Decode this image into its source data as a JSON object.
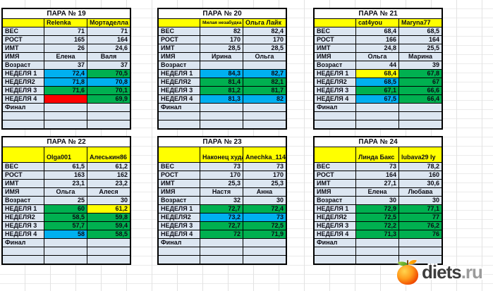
{
  "palette": {
    "plain": "#dce6f1",
    "blue": "#00b0f0",
    "green": "#00b050",
    "red": "#ff0000",
    "yellow": "#ffff00"
  },
  "logo": {
    "text": "diets",
    "suffix": ".ru"
  },
  "tables": [
    {
      "title": "ПАРА № 19",
      "players": [
        "Relenka",
        "Мортаделла"
      ],
      "tall_header": false,
      "players_small": [
        false,
        false
      ],
      "rows": [
        {
          "label": "ВЕС",
          "values": [
            "71",
            "71"
          ],
          "fills": [
            "plain",
            "plain"
          ]
        },
        {
          "label": "РОСТ",
          "values": [
            "165",
            "164"
          ],
          "fills": [
            "plain",
            "plain"
          ]
        },
        {
          "label": "ИМТ",
          "values": [
            "26",
            "24,6"
          ],
          "fills": [
            "plain",
            "plain"
          ]
        },
        {
          "label": "ИМЯ",
          "values": [
            "Елена",
            "Валя"
          ],
          "fills": [
            "plain",
            "plain"
          ],
          "align": "center"
        },
        {
          "label": "Возраст",
          "values": [
            "37",
            "37"
          ],
          "fills": [
            "plain",
            "plain"
          ]
        },
        {
          "label": "НЕДЕЛЯ 1",
          "values": [
            "72,4",
            "70,5"
          ],
          "fills": [
            "blue",
            "green"
          ]
        },
        {
          "label": "НЕДЕЛЯ2",
          "values": [
            "71,8",
            "70,8"
          ],
          "fills": [
            "blue",
            "blue"
          ]
        },
        {
          "label": "НЕДЕЛЯ 3",
          "values": [
            "71,6",
            "70,1"
          ],
          "fills": [
            "green",
            "green"
          ]
        },
        {
          "label": "НЕДЕЛЯ 4",
          "values": [
            "",
            "69,9"
          ],
          "fills": [
            "red",
            "green"
          ]
        },
        {
          "label": "Финал",
          "values": [
            "",
            ""
          ],
          "fills": [
            "plain",
            "plain"
          ]
        },
        {
          "label": "",
          "values": [
            "",
            ""
          ],
          "fills": [
            "plain",
            "plain"
          ]
        },
        {
          "label": "",
          "values": [
            "",
            ""
          ],
          "fills": [
            "plain",
            "plain"
          ]
        }
      ]
    },
    {
      "title": "ПАРА № 20",
      "players": [
        "Милая незабудка",
        "Ольга Лайк"
      ],
      "tall_header": false,
      "players_small": [
        true,
        false
      ],
      "rows": [
        {
          "label": "ВЕС",
          "values": [
            "82",
            "82,4"
          ],
          "fills": [
            "plain",
            "plain"
          ]
        },
        {
          "label": "РОСТ",
          "values": [
            "170",
            "170"
          ],
          "fills": [
            "plain",
            "plain"
          ]
        },
        {
          "label": "ИМТ",
          "values": [
            "28,5",
            "28,5"
          ],
          "fills": [
            "plain",
            "plain"
          ]
        },
        {
          "label": "ИМЯ",
          "values": [
            "Ирина",
            "Ольга"
          ],
          "fills": [
            "plain",
            "plain"
          ],
          "align": "center"
        },
        {
          "label": "Возраст",
          "values": [
            "",
            ""
          ],
          "fills": [
            "plain",
            "plain"
          ]
        },
        {
          "label": "НЕДЕЛЯ 1",
          "values": [
            "84,3",
            "82,7"
          ],
          "fills": [
            "blue",
            "blue"
          ]
        },
        {
          "label": "НЕДЕЛЯ2",
          "values": [
            "81,4",
            "82,1"
          ],
          "fills": [
            "green",
            "green"
          ]
        },
        {
          "label": "НЕДЕЛЯ 3",
          "values": [
            "81,2",
            "81,7"
          ],
          "fills": [
            "green",
            "green"
          ]
        },
        {
          "label": "НЕДЕЛЯ 4",
          "values": [
            "81,3",
            "82"
          ],
          "fills": [
            "blue",
            "blue"
          ]
        },
        {
          "label": "Финал",
          "values": [
            "",
            ""
          ],
          "fills": [
            "plain",
            "plain"
          ]
        },
        {
          "label": "",
          "values": [
            "",
            ""
          ],
          "fills": [
            "plain",
            "plain"
          ]
        },
        {
          "label": "",
          "values": [
            "",
            ""
          ],
          "fills": [
            "plain",
            "plain"
          ]
        }
      ]
    },
    {
      "title": "ПАРА № 21",
      "players": [
        "cat4you",
        "Maryna77"
      ],
      "tall_header": false,
      "players_small": [
        false,
        false
      ],
      "rows": [
        {
          "label": "ВЕС",
          "values": [
            "68,4",
            "68,5"
          ],
          "fills": [
            "plain",
            "plain"
          ]
        },
        {
          "label": "РОСТ",
          "values": [
            "166",
            "164"
          ],
          "fills": [
            "plain",
            "plain"
          ]
        },
        {
          "label": "ИМТ",
          "values": [
            "24,8",
            "25,5"
          ],
          "fills": [
            "plain",
            "plain"
          ]
        },
        {
          "label": "ИМЯ",
          "values": [
            "Ольга",
            "Марина"
          ],
          "fills": [
            "plain",
            "plain"
          ],
          "align": "center"
        },
        {
          "label": "Возраст",
          "values": [
            "44",
            "39"
          ],
          "fills": [
            "plain",
            "plain"
          ]
        },
        {
          "label": "НЕДЕЛЯ 1",
          "values": [
            "68,4",
            "67,8"
          ],
          "fills": [
            "yellow",
            "green"
          ]
        },
        {
          "label": "НЕДЕЛЯ2",
          "values": [
            "68,5",
            "67"
          ],
          "fills": [
            "blue",
            "green"
          ]
        },
        {
          "label": "НЕДЕЛЯ 3",
          "values": [
            "67,1",
            "66,6"
          ],
          "fills": [
            "green",
            "green"
          ]
        },
        {
          "label": "НЕДЕЛЯ 4",
          "values": [
            "67,5",
            "66,4"
          ],
          "fills": [
            "blue",
            "green"
          ]
        },
        {
          "label": "Финал",
          "values": [
            "",
            ""
          ],
          "fills": [
            "plain",
            "plain"
          ]
        },
        {
          "label": "",
          "values": [
            "",
            ""
          ],
          "fills": [
            "plain",
            "plain"
          ]
        },
        {
          "label": "",
          "values": [
            "",
            ""
          ],
          "fills": [
            "plain",
            "plain"
          ]
        }
      ]
    },
    {
      "title": "ПАРА № 22",
      "players": [
        "Olga001",
        "Алеськин86"
      ],
      "tall_header": true,
      "players_small": [
        false,
        false
      ],
      "rows": [
        {
          "label": "ВЕС",
          "values": [
            "61,5",
            "61,2"
          ],
          "fills": [
            "plain",
            "plain"
          ]
        },
        {
          "label": "РОСТ",
          "values": [
            "163",
            "162"
          ],
          "fills": [
            "plain",
            "plain"
          ]
        },
        {
          "label": "ИМТ",
          "values": [
            "23,1",
            "23,2"
          ],
          "fills": [
            "plain",
            "plain"
          ]
        },
        {
          "label": "ИМЯ",
          "values": [
            "Ольга",
            "Алеся"
          ],
          "fills": [
            "plain",
            "plain"
          ],
          "align": "center"
        },
        {
          "label": "Возраст",
          "values": [
            "25",
            "30"
          ],
          "fills": [
            "plain",
            "plain"
          ]
        },
        {
          "label": "НЕДЕЛЯ 1",
          "values": [
            "60",
            "61,2"
          ],
          "fills": [
            "green",
            "yellow"
          ]
        },
        {
          "label": "НЕДЕЛЯ2",
          "values": [
            "58,5",
            "59,8"
          ],
          "fills": [
            "green",
            "green"
          ]
        },
        {
          "label": "НЕДЕЛЯ 3",
          "values": [
            "57,7",
            "59,4"
          ],
          "fills": [
            "green",
            "green"
          ]
        },
        {
          "label": "НЕДЕЛЯ 4",
          "values": [
            "58",
            "58,5"
          ],
          "fills": [
            "blue",
            "green"
          ]
        },
        {
          "label": "Финал",
          "values": [
            "",
            ""
          ],
          "fills": [
            "plain",
            "plain"
          ]
        },
        {
          "label": "",
          "values": [
            "",
            ""
          ],
          "fills": [
            "plain",
            "plain"
          ]
        },
        {
          "label": "",
          "values": [
            "",
            ""
          ],
          "fills": [
            "plain",
            "plain"
          ]
        }
      ]
    },
    {
      "title": "ПАРА № 23",
      "players": [
        "Наконец худая",
        "Anechka_114"
      ],
      "tall_header": true,
      "players_small": [
        false,
        false
      ],
      "rows": [
        {
          "label": "ВЕС",
          "values": [
            "73",
            "73"
          ],
          "fills": [
            "plain",
            "plain"
          ]
        },
        {
          "label": "РОСТ",
          "values": [
            "170",
            "170"
          ],
          "fills": [
            "plain",
            "plain"
          ]
        },
        {
          "label": "ИМТ",
          "values": [
            "25,3",
            "25,3"
          ],
          "fills": [
            "plain",
            "plain"
          ]
        },
        {
          "label": "ИМЯ",
          "values": [
            "Настя",
            "Анна"
          ],
          "fills": [
            "plain",
            "plain"
          ],
          "align": "center"
        },
        {
          "label": "Возраст",
          "values": [
            "32",
            "30"
          ],
          "fills": [
            "plain",
            "plain"
          ]
        },
        {
          "label": "НЕДЕЛЯ 1",
          "values": [
            "72,7",
            "72,4"
          ],
          "fills": [
            "green",
            "green"
          ]
        },
        {
          "label": "НЕДЕЛЯ2",
          "values": [
            "73,2",
            "73"
          ],
          "fills": [
            "blue",
            "blue"
          ]
        },
        {
          "label": "НЕДЕЛЯ 3",
          "values": [
            "72,7",
            "72,5"
          ],
          "fills": [
            "green",
            "green"
          ]
        },
        {
          "label": "НЕДЕЛЯ 4",
          "values": [
            "72",
            "71,9"
          ],
          "fills": [
            "green",
            "green"
          ]
        },
        {
          "label": "Финал",
          "values": [
            "",
            ""
          ],
          "fills": [
            "plain",
            "plain"
          ]
        },
        {
          "label": "",
          "values": [
            "",
            ""
          ],
          "fills": [
            "plain",
            "plain"
          ]
        },
        {
          "label": "",
          "values": [
            "",
            ""
          ],
          "fills": [
            "plain",
            "plain"
          ]
        }
      ]
    },
    {
      "title": "ПАРА № 24",
      "players": [
        "Линда Бакс",
        "lubava29 ly"
      ],
      "tall_header": true,
      "players_small": [
        false,
        false
      ],
      "rows": [
        {
          "label": "ВЕС",
          "values": [
            "73",
            "78,2"
          ],
          "fills": [
            "plain",
            "plain"
          ]
        },
        {
          "label": "РОСТ",
          "values": [
            "164",
            "160"
          ],
          "fills": [
            "plain",
            "plain"
          ]
        },
        {
          "label": "ИМТ",
          "values": [
            "27,1",
            "30,6"
          ],
          "fills": [
            "plain",
            "plain"
          ]
        },
        {
          "label": "ИМЯ",
          "values": [
            "Елена",
            "Любава"
          ],
          "fills": [
            "plain",
            "plain"
          ],
          "align": "center"
        },
        {
          "label": "Возраст",
          "values": [
            "30",
            "30"
          ],
          "fills": [
            "plain",
            "plain"
          ]
        },
        {
          "label": "НЕДЕЛЯ 1",
          "values": [
            "72,9",
            "77,1"
          ],
          "fills": [
            "green",
            "green"
          ]
        },
        {
          "label": "НЕДЕЛЯ2",
          "values": [
            "72,5",
            "77"
          ],
          "fills": [
            "green",
            "green"
          ]
        },
        {
          "label": "НЕДЕЛЯ 3",
          "values": [
            "72,2",
            "76,2"
          ],
          "fills": [
            "green",
            "green"
          ]
        },
        {
          "label": "НЕДЕЛЯ 4",
          "values": [
            "71,3",
            "76"
          ],
          "fills": [
            "green",
            "green"
          ]
        },
        {
          "label": "Финал",
          "values": [
            "",
            ""
          ],
          "fills": [
            "plain",
            "plain"
          ]
        },
        {
          "label": "",
          "values": [
            "",
            ""
          ],
          "fills": [
            "plain",
            "plain"
          ]
        },
        {
          "label": "",
          "values": [
            "",
            ""
          ],
          "fills": [
            "plain",
            "plain"
          ]
        }
      ]
    }
  ]
}
